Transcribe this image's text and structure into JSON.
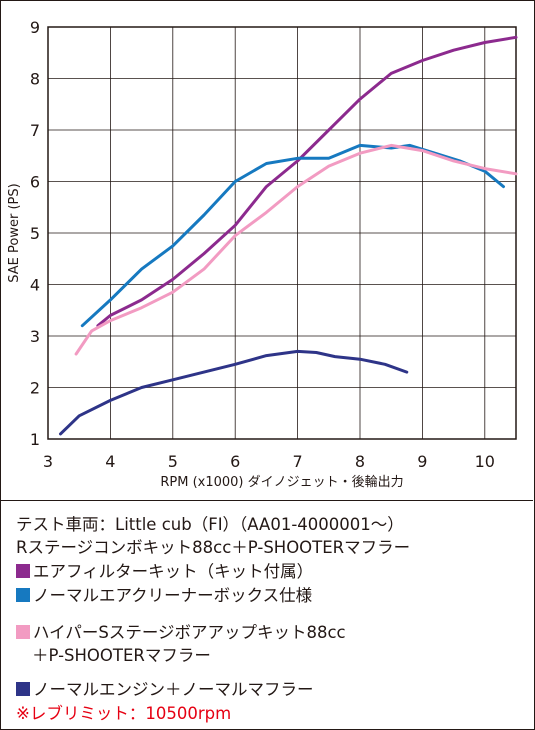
{
  "chart_data": {
    "type": "line",
    "xlabel": "RPM (x1000) ダイノジェット・後輪出力",
    "ylabel": "SAE Power (PS)",
    "xlim": [
      3,
      10.5
    ],
    "ylim": [
      1,
      9
    ],
    "xticks": [
      3,
      4,
      5,
      6,
      7,
      8,
      9,
      10
    ],
    "yticks": [
      1,
      2,
      3,
      4,
      5,
      6,
      7,
      8,
      9
    ],
    "grid": true,
    "series": [
      {
        "name": "エアフィルターキット（キット付属）",
        "color": "#8c2a8e",
        "x": [
          3.8,
          4.0,
          4.5,
          5.0,
          5.5,
          6.0,
          6.5,
          7.0,
          7.5,
          8.0,
          8.5,
          9.0,
          9.5,
          10.0,
          10.5
        ],
        "y": [
          3.2,
          3.4,
          3.7,
          4.1,
          4.6,
          5.15,
          5.9,
          6.4,
          7.0,
          7.6,
          8.1,
          8.35,
          8.55,
          8.7,
          8.8
        ]
      },
      {
        "name": "ノーマルエアクリーナーボックス仕様",
        "color": "#1679c0",
        "x": [
          3.55,
          4.0,
          4.5,
          5.0,
          5.5,
          6.0,
          6.5,
          7.0,
          7.5,
          8.0,
          8.5,
          8.8,
          9.2,
          9.6,
          10.0,
          10.3
        ],
        "y": [
          3.2,
          3.7,
          4.3,
          4.75,
          5.35,
          6.0,
          6.35,
          6.45,
          6.45,
          6.7,
          6.65,
          6.7,
          6.55,
          6.4,
          6.2,
          5.9
        ]
      },
      {
        "name": "ハイパーSステージボアアップキット88cc＋P-SHOOTERマフラー",
        "color": "#f29bc2",
        "x": [
          3.45,
          3.7,
          4.0,
          4.5,
          5.0,
          5.5,
          6.0,
          6.5,
          7.0,
          7.5,
          8.0,
          8.5,
          9.0,
          9.5,
          10.0,
          10.5
        ],
        "y": [
          2.65,
          3.1,
          3.3,
          3.55,
          3.85,
          4.3,
          4.95,
          5.4,
          5.9,
          6.3,
          6.55,
          6.7,
          6.6,
          6.4,
          6.25,
          6.15
        ]
      },
      {
        "name": "ノーマルエンジン＋ノーマルマフラー",
        "color": "#2e3488",
        "x": [
          3.2,
          3.5,
          4.0,
          4.5,
          5.0,
          5.5,
          6.0,
          6.5,
          7.0,
          7.3,
          7.6,
          8.0,
          8.4,
          8.75
        ],
        "y": [
          1.1,
          1.45,
          1.75,
          2.0,
          2.15,
          2.3,
          2.45,
          2.62,
          2.7,
          2.68,
          2.6,
          2.55,
          2.45,
          2.3
        ]
      }
    ]
  },
  "legend": {
    "vehicle_line1": "テスト車両：Little cub（FI）（AA01-4000001～）",
    "vehicle_line2": "Rステージコンボキット88cc＋P-SHOOTERマフラー",
    "item1": "エアフィルターキット（キット付属）",
    "item2": "ノーマルエアクリーナーボックス仕様",
    "item3_line1": "ハイパーSステージボアアップキット88cc",
    "item3_line2": "＋P-SHOOTERマフラー",
    "item4": "ノーマルエンジン＋ノーマルマフラー",
    "rev_limit": "※レブリミット：10500rpm"
  },
  "colors": {
    "purple": "#8c2a8e",
    "blue": "#1679c0",
    "pink": "#f29bc2",
    "navy": "#2e3488",
    "red": "#e60012"
  }
}
